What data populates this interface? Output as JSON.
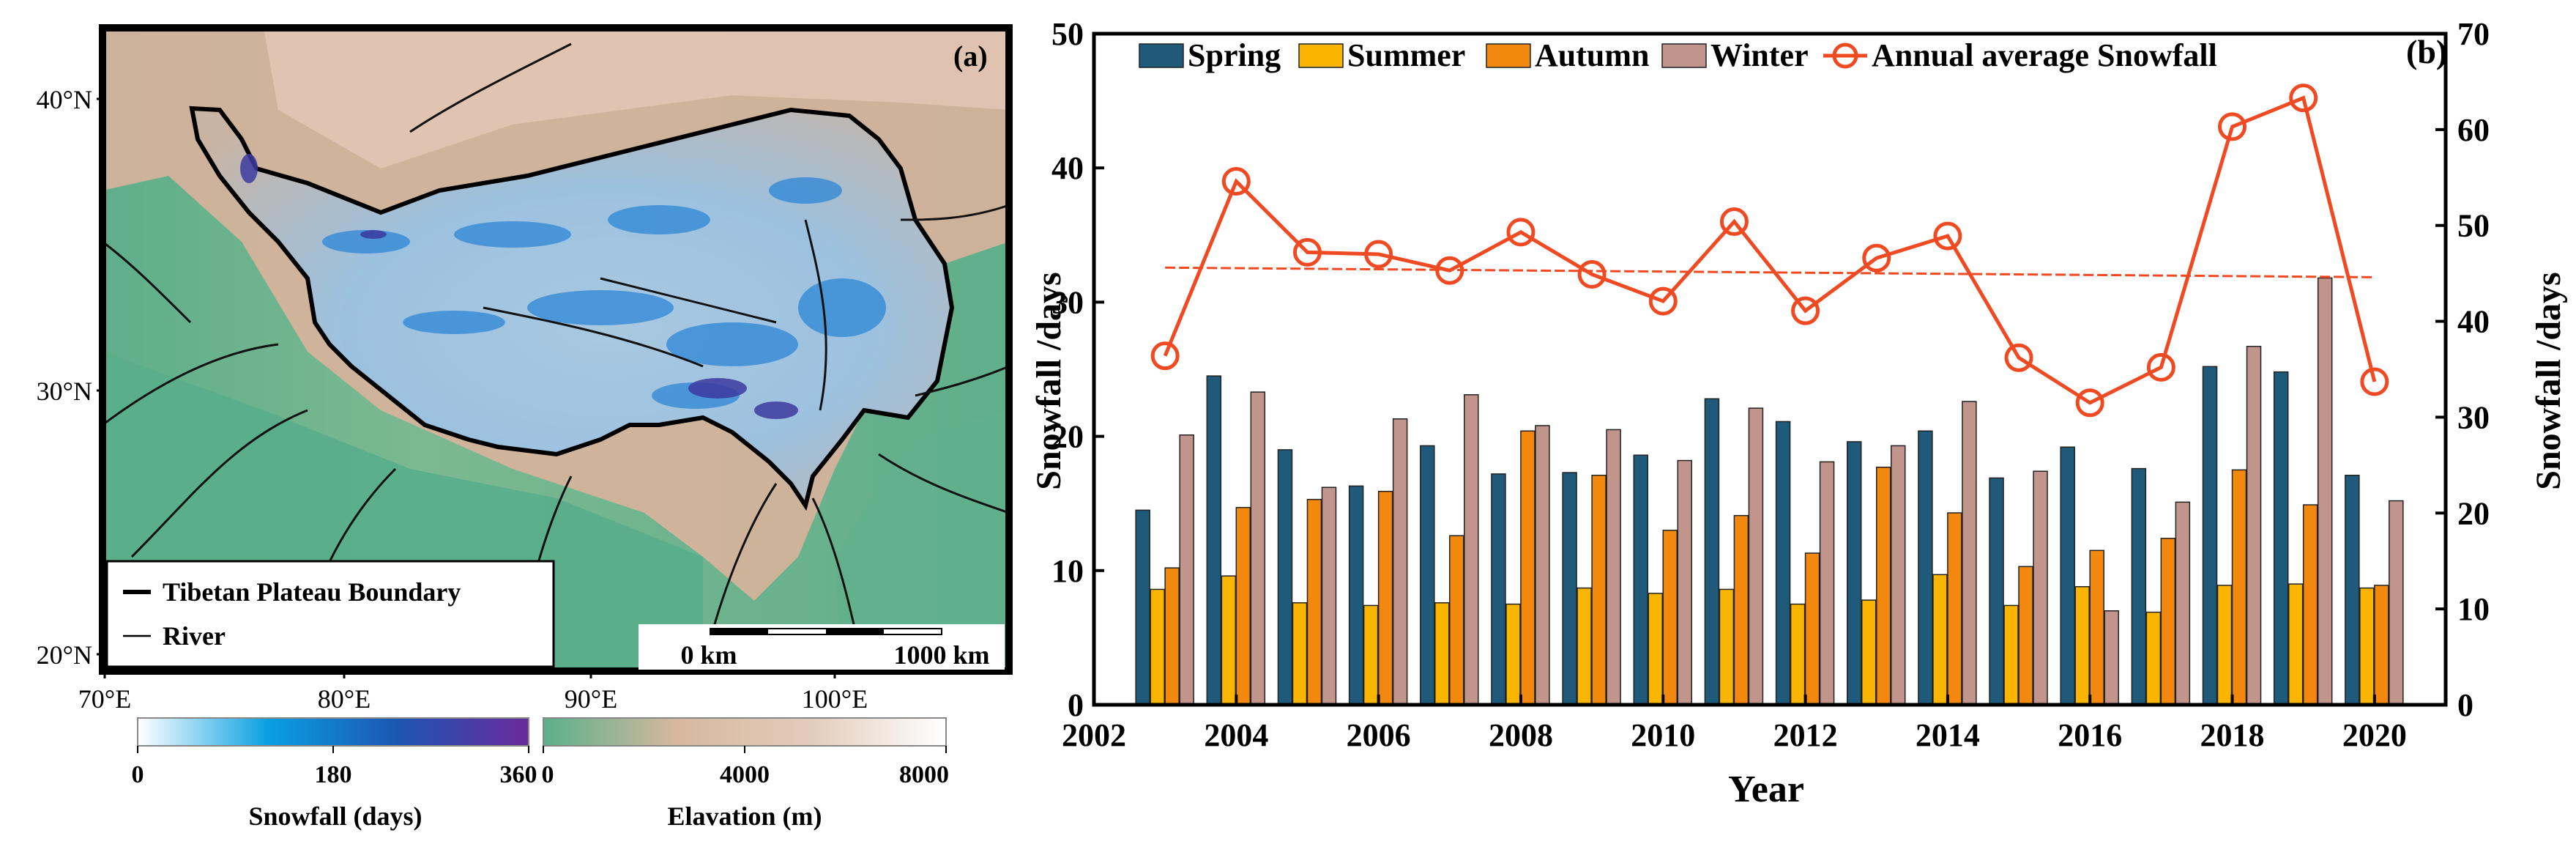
{
  "panel_a": {
    "label": "(a)",
    "lat_ticks": [
      "40°N",
      "30°N",
      "20°N"
    ],
    "lon_ticks": [
      "70°E",
      "80°E",
      "90°E",
      "100°E"
    ],
    "legend": {
      "boundary": "Tibetan Plateau Boundary",
      "river": "River"
    },
    "scalebar": {
      "start": "0 km",
      "end": "1000 km"
    },
    "colorbars": [
      {
        "title": "Snowfall (days)",
        "ticks": [
          "0",
          "180",
          "360"
        ],
        "colors": [
          "#ffffff",
          "#0aa0e2",
          "#1d55b3",
          "#6a2a9a"
        ]
      },
      {
        "title": "Elavation (m)",
        "ticks": [
          "0",
          "4000",
          "8000"
        ],
        "colors": [
          "#58b08a",
          "#d7b89e",
          "#e3ccbb",
          "#ffffff"
        ]
      }
    ]
  },
  "chart_data": {
    "type": "bar",
    "label": "(b)",
    "xlabel": "Year",
    "ylabel_left": "Snowfall /days",
    "ylabel_right": "Snowfall /days",
    "xlim": [
      2002,
      2021
    ],
    "xticks": [
      "2002",
      "2004",
      "2006",
      "2008",
      "2010",
      "2012",
      "2014",
      "2016",
      "2018",
      "2020"
    ],
    "ylim_left": [
      0,
      50
    ],
    "yticks_left": [
      "0",
      "10",
      "20",
      "30",
      "40",
      "50"
    ],
    "ylim_right": [
      0,
      70
    ],
    "yticks_right": [
      "0",
      "10",
      "20",
      "30",
      "40",
      "50",
      "60",
      "70"
    ],
    "categories": [
      2003,
      2004,
      2005,
      2006,
      2007,
      2008,
      2009,
      2010,
      2011,
      2012,
      2013,
      2014,
      2015,
      2016,
      2017,
      2018,
      2019,
      2020
    ],
    "series": [
      {
        "name": "Spring",
        "color": "#1f5a7a",
        "values": [
          14.5,
          24.5,
          19.0,
          16.3,
          19.3,
          17.2,
          17.3,
          18.6,
          22.8,
          21.1,
          19.6,
          20.4,
          16.9,
          19.2,
          17.6,
          25.2,
          24.8,
          17.1
        ]
      },
      {
        "name": "Summer",
        "color": "#f9b500",
        "values": [
          8.6,
          9.6,
          7.6,
          7.4,
          7.6,
          7.5,
          8.7,
          8.3,
          8.6,
          7.5,
          7.8,
          9.7,
          7.4,
          8.8,
          6.9,
          8.9,
          9.0,
          8.7
        ]
      },
      {
        "name": "Autumn",
        "color": "#f2880e",
        "values": [
          10.2,
          14.7,
          15.3,
          15.9,
          12.6,
          20.4,
          17.1,
          13.0,
          14.1,
          11.3,
          17.7,
          14.3,
          10.3,
          11.5,
          12.4,
          17.5,
          14.9,
          8.9
        ]
      },
      {
        "name": "Winter",
        "color": "#c1958b",
        "values": [
          20.1,
          23.3,
          16.2,
          21.3,
          23.1,
          20.8,
          20.5,
          18.2,
          22.1,
          18.1,
          19.3,
          22.6,
          17.4,
          7.0,
          15.1,
          26.7,
          31.8,
          15.2
        ]
      }
    ],
    "line_series": {
      "name": "Annual average Snowfall",
      "color": "#f04a23",
      "axis": "right",
      "values": [
        36.4,
        54.6,
        47.2,
        47.0,
        45.3,
        49.3,
        44.9,
        42.1,
        50.4,
        41.1,
        46.6,
        48.9,
        36.2,
        31.5,
        35.2,
        60.3,
        63.3,
        33.7
      ]
    },
    "trend_line": {
      "color": "#f04a23",
      "axis": "right",
      "start": [
        2003,
        45.6
      ],
      "end": [
        2020,
        44.6
      ]
    }
  }
}
